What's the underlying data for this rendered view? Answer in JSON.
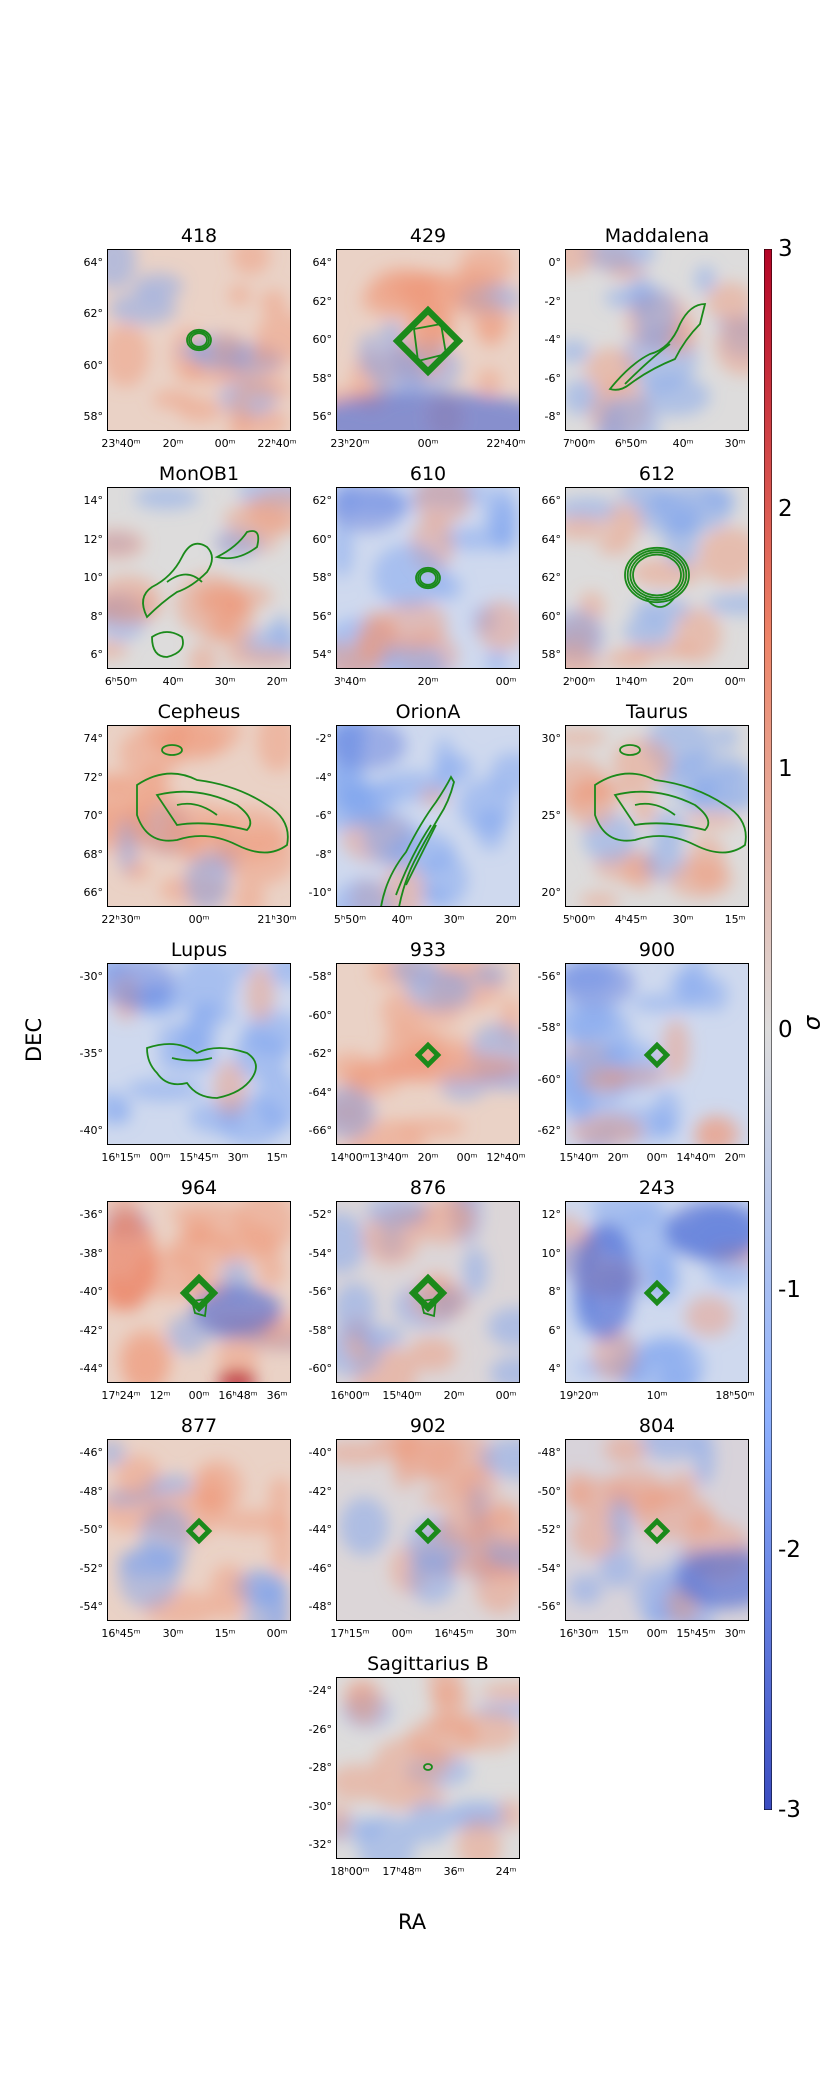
{
  "figure": {
    "xlabel": "RA",
    "ylabel": "DEC",
    "colorbar_label": "σ",
    "colorbar_ticks": [
      "3",
      "2",
      "1",
      "0",
      "-1",
      "-2",
      "-3"
    ],
    "colorbar_range": [
      -3,
      3
    ],
    "colors": {
      "low": "#3b4cc0",
      "mid": "#dddcdc",
      "high": "#b40426",
      "contour": "#1a8a1a"
    }
  },
  "chart_data": [
    {
      "type": "heatmap",
      "title": "418",
      "yticks": [
        "64°",
        "62°",
        "60°",
        "58°"
      ],
      "xticks": [
        "23ʰ40ᵐ",
        "20ᵐ",
        "00ᵐ",
        "22ʰ40ᵐ"
      ],
      "bg": "warm",
      "contour": "ring"
    },
    {
      "type": "heatmap",
      "title": "429",
      "yticks": [
        "64°",
        "62°",
        "60°",
        "58°",
        "56°"
      ],
      "xticks": [
        "23ʰ20ᵐ",
        "00ᵐ",
        "22ʰ40ᵐ"
      ],
      "bg": "warm-cold-bottom",
      "contour": "square"
    },
    {
      "type": "heatmap",
      "title": "Maddalena",
      "yticks": [
        "0°",
        "-2°",
        "-4°",
        "-6°",
        "-8°"
      ],
      "xticks": [
        "7ʰ00ᵐ",
        "6ʰ50ᵐ",
        "40ᵐ",
        "30ᵐ"
      ],
      "bg": "neutral",
      "contour": "diagonal"
    },
    {
      "type": "heatmap",
      "title": "MonOB1",
      "yticks": [
        "14°",
        "12°",
        "10°",
        "8°",
        "6°"
      ],
      "xticks": [
        "6ʰ50ᵐ",
        "40ᵐ",
        "30ᵐ",
        "20ᵐ"
      ],
      "bg": "neutral",
      "contour": "complex"
    },
    {
      "type": "heatmap",
      "title": "610",
      "yticks": [
        "62°",
        "60°",
        "58°",
        "56°",
        "54°"
      ],
      "xticks": [
        "3ʰ40ᵐ",
        "20ᵐ",
        "00ᵐ"
      ],
      "bg": "cool",
      "contour": "ring"
    },
    {
      "type": "heatmap",
      "title": "612",
      "yticks": [
        "66°",
        "64°",
        "62°",
        "60°",
        "58°"
      ],
      "xticks": [
        "2ʰ00ᵐ",
        "1ʰ40ᵐ",
        "20ᵐ",
        "00ᵐ"
      ],
      "bg": "neutral",
      "contour": "big-ring"
    },
    {
      "type": "heatmap",
      "title": "Cepheus",
      "yticks": [
        "74°",
        "72°",
        "70°",
        "68°",
        "66°"
      ],
      "xticks": [
        "22ʰ30ᵐ",
        "00ᵐ",
        "21ʰ30ᵐ"
      ],
      "bg": "warm",
      "contour": "cloud"
    },
    {
      "type": "heatmap",
      "title": "OrionA",
      "yticks": [
        "-2°",
        "-4°",
        "-6°",
        "-8°",
        "-10°"
      ],
      "xticks": [
        "5ʰ50ᵐ",
        "40ᵐ",
        "30ᵐ",
        "20ᵐ"
      ],
      "bg": "cool",
      "contour": "filament"
    },
    {
      "type": "heatmap",
      "title": "Taurus",
      "yticks": [
        "30°",
        "25°",
        "20°"
      ],
      "xticks": [
        "5ʰ00ᵐ",
        "4ʰ45ᵐ",
        "30ᵐ",
        "15ᵐ"
      ],
      "bg": "neutral",
      "contour": "cloud"
    },
    {
      "type": "heatmap",
      "title": "Lupus",
      "yticks": [
        "-30°",
        "-35°",
        "-40°"
      ],
      "xticks": [
        "16ʰ15ᵐ",
        "00ᵐ",
        "15ʰ45ᵐ",
        "30ᵐ",
        "15ᵐ"
      ],
      "bg": "cool",
      "contour": "loop"
    },
    {
      "type": "heatmap",
      "title": "933",
      "yticks": [
        "-58°",
        "-60°",
        "-62°",
        "-64°",
        "-66°"
      ],
      "xticks": [
        "14ʰ00ᵐ",
        "13ʰ40ᵐ",
        "20ᵐ",
        "00ᵐ",
        "12ʰ40ᵐ"
      ],
      "bg": "warm-band",
      "contour": "small-square"
    },
    {
      "type": "heatmap",
      "title": "900",
      "yticks": [
        "-56°",
        "-58°",
        "-60°",
        "-62°"
      ],
      "xticks": [
        "15ʰ40ᵐ",
        "20ᵐ",
        "00ᵐ",
        "14ʰ40ᵐ",
        "20ᵐ"
      ],
      "bg": "cool",
      "contour": "small-square"
    },
    {
      "type": "heatmap",
      "title": "964",
      "yticks": [
        "-36°",
        "-38°",
        "-40°",
        "-42°",
        "-44°"
      ],
      "xticks": [
        "17ʰ24ᵐ",
        "12ᵐ",
        "00ᵐ",
        "16ʰ48ᵐ",
        "36ᵐ"
      ],
      "bg": "warm-left-cold",
      "contour": "diamond"
    },
    {
      "type": "heatmap",
      "title": "876",
      "yticks": [
        "-52°",
        "-54°",
        "-56°",
        "-58°",
        "-60°"
      ],
      "xticks": [
        "16ʰ00ᵐ",
        "15ʰ40ᵐ",
        "20ᵐ",
        "00ᵐ"
      ],
      "bg": "mixed",
      "contour": "diamond"
    },
    {
      "type": "heatmap",
      "title": "243",
      "yticks": [
        "12°",
        "10°",
        "8°",
        "6°",
        "4°"
      ],
      "xticks": [
        "19ʰ20ᵐ",
        "10ᵐ",
        "18ʰ50ᵐ"
      ],
      "bg": "cold",
      "contour": "small-square"
    },
    {
      "type": "heatmap",
      "title": "877",
      "yticks": [
        "-46°",
        "-48°",
        "-50°",
        "-52°",
        "-54°"
      ],
      "xticks": [
        "16ʰ45ᵐ",
        "30ᵐ",
        "15ᵐ",
        "00ᵐ"
      ],
      "bg": "warm",
      "contour": "small-square"
    },
    {
      "type": "heatmap",
      "title": "902",
      "yticks": [
        "-40°",
        "-42°",
        "-44°",
        "-46°",
        "-48°"
      ],
      "xticks": [
        "17ʰ15ᵐ",
        "00ᵐ",
        "16ʰ45ᵐ",
        "30ᵐ"
      ],
      "bg": "mixed",
      "contour": "small-square"
    },
    {
      "type": "heatmap",
      "title": "804",
      "yticks": [
        "-48°",
        "-50°",
        "-52°",
        "-54°",
        "-56°"
      ],
      "xticks": [
        "16ʰ30ᵐ",
        "15ᵐ",
        "00ᵐ",
        "15ʰ45ᵐ",
        "30ᵐ"
      ],
      "bg": "cold-corner",
      "contour": "small-square"
    },
    {
      "type": "heatmap",
      "title": "Sagittarius B",
      "yticks": [
        "-24°",
        "-26°",
        "-28°",
        "-30°",
        "-32°"
      ],
      "xticks": [
        "18ʰ00ᵐ",
        "17ʰ48ᵐ",
        "36ᵐ",
        "24ᵐ"
      ],
      "bg": "neutral",
      "contour": "tiny"
    }
  ]
}
